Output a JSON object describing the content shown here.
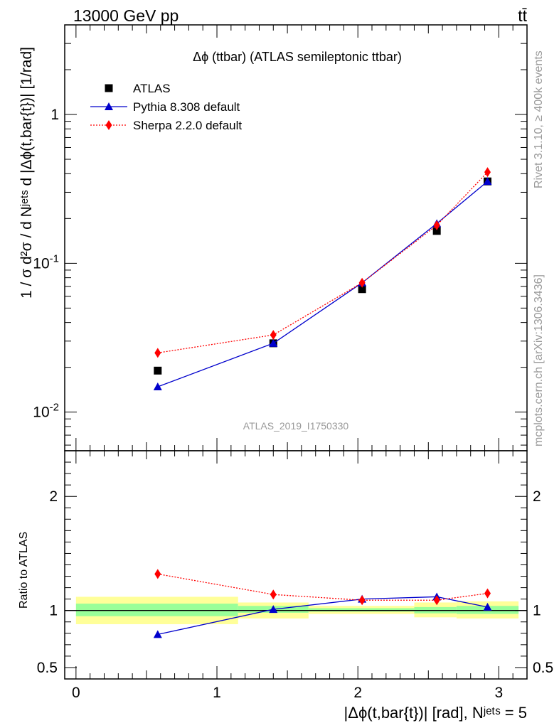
{
  "header": {
    "left": "13000 GeV pp",
    "right": "tt̄"
  },
  "side_text": {
    "top": "Rivet 3.1.10, ≥ 400k events",
    "bottom": "mcplots.cern.ch [arXiv:1306.3436]"
  },
  "chart_data": [
    {
      "type": "scatter",
      "panel": "main",
      "title": "Δϕ (ttbar) (ATLAS semileptonic ttbar)",
      "watermark": "ATLAS_2019_I1750330",
      "ylabel": "1 / σ d²σ / d Nʲᵉᵗˢ d |Δϕ(t,bar{t})| [1/rad]",
      "yscale": "log",
      "ylim": [
        0.0055,
        4.0
      ],
      "xlim": [
        -0.08,
        3.2
      ],
      "y_tick_labels": [
        "10⁻²",
        "10⁻¹",
        "1"
      ],
      "legend_position": "top-left",
      "series": [
        {
          "name": "ATLAS",
          "marker": "square",
          "color": "#000000",
          "line": "none",
          "x": [
            0.58,
            1.4,
            2.03,
            2.56,
            2.92
          ],
          "y": [
            0.019,
            0.029,
            0.067,
            0.165,
            0.355
          ]
        },
        {
          "name": "Pythia 8.308 default",
          "marker": "triangle",
          "color": "#0000cc",
          "line": "solid",
          "x": [
            0.58,
            1.4,
            2.03,
            2.56,
            2.92
          ],
          "y": [
            0.0148,
            0.029,
            0.074,
            0.185,
            0.355
          ]
        },
        {
          "name": "Sherpa 2.2.0 default",
          "marker": "diamond",
          "color": "#ff0000",
          "line": "dotted",
          "x": [
            0.58,
            1.4,
            2.03,
            2.56,
            2.92
          ],
          "y": [
            0.025,
            0.033,
            0.074,
            0.18,
            0.41
          ]
        }
      ]
    },
    {
      "type": "scatter",
      "panel": "ratio",
      "ylabel": "Ratio to ATLAS",
      "xlabel": "|Δϕ(t,bar{t})| [rad], Nʲᵉᵗˢ = 5",
      "ylim": [
        0.4,
        2.4
      ],
      "xlim": [
        -0.08,
        3.2
      ],
      "x_tick_labels": [
        "0",
        "1",
        "2",
        "3"
      ],
      "y_tick_labels": [
        "0.5",
        "1",
        "2"
      ],
      "reference_line": 1.0,
      "uncertainty_bands": [
        {
          "x0": 0.0,
          "x1": 1.15,
          "inner": [
            0.95,
            1.06
          ],
          "outer": [
            0.88,
            1.12
          ]
        },
        {
          "x0": 1.15,
          "x1": 1.65,
          "inner": [
            0.98,
            1.04
          ],
          "outer": [
            0.93,
            1.07
          ]
        },
        {
          "x0": 1.65,
          "x1": 2.4,
          "inner": [
            0.99,
            1.02
          ],
          "outer": [
            0.97,
            1.04
          ]
        },
        {
          "x0": 2.4,
          "x1": 2.7,
          "inner": [
            0.975,
            1.03
          ],
          "outer": [
            0.94,
            1.07
          ]
        },
        {
          "x0": 2.7,
          "x1": 3.14,
          "inner": [
            0.97,
            1.04
          ],
          "outer": [
            0.93,
            1.08
          ]
        }
      ],
      "series": [
        {
          "name": "Pythia 8.308 default",
          "marker": "triangle",
          "color": "#0000cc",
          "line": "solid",
          "x": [
            0.58,
            1.4,
            2.03,
            2.56,
            2.92
          ],
          "y": [
            0.79,
            1.01,
            1.1,
            1.12,
            1.03
          ]
        },
        {
          "name": "Sherpa 2.2.0 default",
          "marker": "diamond",
          "color": "#ff0000",
          "line": "dotted",
          "x": [
            0.58,
            1.4,
            2.03,
            2.56,
            2.92
          ],
          "y": [
            1.32,
            1.14,
            1.09,
            1.09,
            1.15
          ]
        }
      ]
    }
  ]
}
